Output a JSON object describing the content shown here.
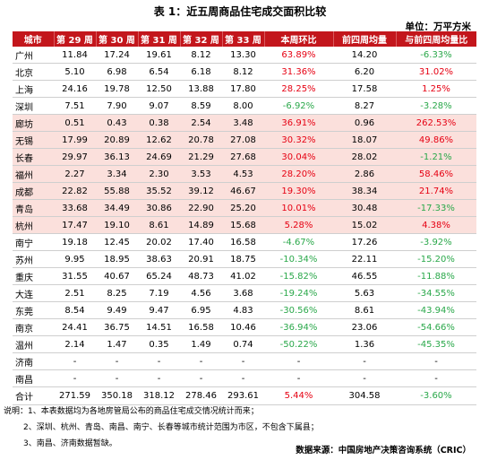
{
  "title": "表 1：近五周商品住宅成交面积比较",
  "unit": "单位：万平方米",
  "headers": [
    "城市",
    "第 29 周",
    "第 30 周",
    "第 31 周",
    "第 32 周",
    "第 33 周",
    "本周环比",
    "前四周均量",
    "与前四周均量比"
  ],
  "rows": [
    {
      "city": "广州",
      "w29": "11.84",
      "w30": "17.24",
      "w31": "19.61",
      "w32": "8.12",
      "w33": "13.30",
      "wow": "63.89%",
      "avg4": "14.20",
      "vsavg": "-6.33%"
    },
    {
      "city": "北京",
      "w29": "5.10",
      "w30": "6.98",
      "w31": "6.54",
      "w32": "6.18",
      "w33": "8.12",
      "wow": "31.36%",
      "avg4": "6.20",
      "vsavg": "31.02%"
    },
    {
      "city": "上海",
      "w29": "24.16",
      "w30": "19.78",
      "w31": "12.50",
      "w32": "13.88",
      "w33": "17.80",
      "wow": "28.25%",
      "avg4": "17.58",
      "vsavg": "1.25%"
    },
    {
      "city": "深圳",
      "w29": "7.51",
      "w30": "7.90",
      "w31": "9.07",
      "w32": "8.59",
      "w33": "8.00",
      "wow": "-6.92%",
      "avg4": "8.27",
      "vsavg": "-3.28%"
    },
    {
      "city": "廊坊",
      "w29": "0.51",
      "w30": "0.43",
      "w31": "0.38",
      "w32": "2.54",
      "w33": "3.48",
      "wow": "36.91%",
      "avg4": "0.96",
      "vsavg": "262.53%"
    },
    {
      "city": "无锡",
      "w29": "17.99",
      "w30": "20.89",
      "w31": "12.62",
      "w32": "20.78",
      "w33": "27.08",
      "wow": "30.32%",
      "avg4": "18.07",
      "vsavg": "49.86%"
    },
    {
      "city": "长春",
      "w29": "29.97",
      "w30": "36.13",
      "w31": "24.69",
      "w32": "21.29",
      "w33": "27.68",
      "wow": "30.04%",
      "avg4": "28.02",
      "vsavg": "-1.21%"
    },
    {
      "city": "福州",
      "w29": "2.27",
      "w30": "3.34",
      "w31": "2.30",
      "w32": "3.53",
      "w33": "4.53",
      "wow": "28.20%",
      "avg4": "2.86",
      "vsavg": "58.46%"
    },
    {
      "city": "成都",
      "w29": "22.82",
      "w30": "55.88",
      "w31": "35.52",
      "w32": "39.12",
      "w33": "46.67",
      "wow": "19.30%",
      "avg4": "38.34",
      "vsavg": "21.74%"
    },
    {
      "city": "青岛",
      "w29": "33.68",
      "w30": "34.49",
      "w31": "30.86",
      "w32": "22.90",
      "w33": "25.20",
      "wow": "10.01%",
      "avg4": "30.48",
      "vsavg": "-17.33%"
    },
    {
      "city": "杭州",
      "w29": "17.47",
      "w30": "19.10",
      "w31": "8.61",
      "w32": "14.89",
      "w33": "15.68",
      "wow": "5.28%",
      "avg4": "15.02",
      "vsavg": "4.38%"
    },
    {
      "city": "南宁",
      "w29": "19.18",
      "w30": "12.45",
      "w31": "20.02",
      "w32": "17.40",
      "w33": "16.58",
      "wow": "-4.67%",
      "avg4": "17.26",
      "vsavg": "-3.92%"
    },
    {
      "city": "苏州",
      "w29": "9.95",
      "w30": "18.95",
      "w31": "38.63",
      "w32": "20.91",
      "w33": "18.75",
      "wow": "-10.34%",
      "avg4": "22.11",
      "vsavg": "-15.20%"
    },
    {
      "city": "重庆",
      "w29": "31.55",
      "w30": "40.67",
      "w31": "65.24",
      "w32": "48.73",
      "w33": "41.02",
      "wow": "-15.82%",
      "avg4": "46.55",
      "vsavg": "-11.88%"
    },
    {
      "city": "大连",
      "w29": "2.51",
      "w30": "8.25",
      "w31": "7.19",
      "w32": "4.56",
      "w33": "3.68",
      "wow": "-19.24%",
      "avg4": "5.63",
      "vsavg": "-34.55%"
    },
    {
      "city": "东莞",
      "w29": "8.54",
      "w30": "9.49",
      "w31": "9.47",
      "w32": "6.95",
      "w33": "4.83",
      "wow": "-30.56%",
      "avg4": "8.61",
      "vsavg": "-43.94%"
    },
    {
      "city": "南京",
      "w29": "24.41",
      "w30": "36.75",
      "w31": "14.51",
      "w32": "16.58",
      "w33": "10.46",
      "wow": "-36.94%",
      "avg4": "23.06",
      "vsavg": "-54.66%"
    },
    {
      "city": "温州",
      "w29": "2.14",
      "w30": "1.47",
      "w31": "0.35",
      "w32": "1.49",
      "w33": "0.74",
      "wow": "-50.22%",
      "avg4": "1.36",
      "vsavg": "-45.35%"
    },
    {
      "city": "济南",
      "w29": "-",
      "w30": "-",
      "w31": "-",
      "w32": "-",
      "w33": "-",
      "wow": "-",
      "avg4": "-",
      "vsavg": "-"
    },
    {
      "city": "南昌",
      "w29": "-",
      "w30": "-",
      "w31": "-",
      "w32": "-",
      "w33": "-",
      "wow": "-",
      "avg4": "-",
      "vsavg": "-"
    }
  ],
  "shaded_rows": [
    4,
    5,
    6,
    7,
    8,
    9,
    10
  ],
  "total": {
    "city": "合计",
    "w29": "271.59",
    "w30": "350.18",
    "w31": "318.12",
    "w32": "278.46",
    "w33": "293.61",
    "wow": "5.44%",
    "avg4": "304.58",
    "vsavg": "-3.60%"
  },
  "notes": [
    "说明：1、本表数据均为各地房管局公布的商品住宅成交情况统计而来；",
    "2、深圳、杭州、青岛、南昌、南宁、长春等城市统计范围为市区，不包含下属县；",
    "3、南昌、济南数据暂缺。"
  ],
  "source": "数据来源：中国房地产决策咨询系统（CRIC）",
  "colors": {
    "header_bg": "#c3161c",
    "shade": "#fbe0dc",
    "positive": "#e60012",
    "negative": "#2aa84a"
  }
}
